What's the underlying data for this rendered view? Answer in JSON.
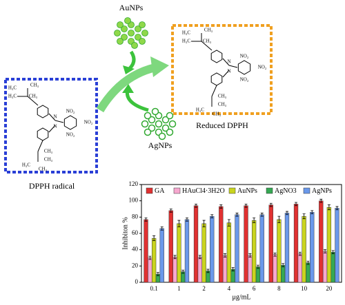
{
  "diagram": {
    "reagent_top": "AuNPs",
    "reagent_bottom": "AgNPs",
    "product": "Reduced DPPH",
    "reactant": "DPPH radical",
    "molecule_labels": [
      "H₃C",
      "CH₃",
      "H₃C",
      "CH₃",
      "N",
      "N",
      "NO₂",
      "NO₂",
      "NO₂",
      "CH₃",
      "CH₃",
      "H₃C",
      "CH₃"
    ]
  },
  "chart_data": {
    "type": "bar",
    "y_label": "Inhibiton %",
    "x_label": "μg/mL",
    "categories": [
      "0.1",
      "1",
      "2",
      "4",
      "6",
      "8",
      "10",
      "20"
    ],
    "series": [
      {
        "name": "GA",
        "color": "#e03131",
        "values": [
          77,
          88,
          94,
          93,
          94,
          95,
          96,
          100
        ],
        "errors": [
          2,
          2,
          2,
          2,
          2,
          2,
          2,
          2
        ]
      },
      {
        "name": "HAuCl4·3H2O",
        "color": "#f7a8cf",
        "values": [
          30,
          31,
          31,
          33,
          33,
          34,
          35,
          38
        ],
        "errors": [
          2,
          2,
          2,
          2,
          2,
          2,
          2,
          2
        ]
      },
      {
        "name": "AuNPs",
        "color": "#c9d41e",
        "values": [
          54,
          72,
          72,
          73,
          76,
          77,
          81,
          92
        ],
        "errors": [
          3,
          4,
          4,
          4,
          3,
          4,
          3,
          3
        ]
      },
      {
        "name": "AgNO3",
        "color": "#35a853",
        "values": [
          10,
          13,
          14,
          16,
          19,
          21,
          24,
          37
        ],
        "errors": [
          2,
          2,
          2,
          2,
          2,
          2,
          2,
          2
        ]
      },
      {
        "name": "AgNPs",
        "color": "#6a98ea",
        "values": [
          66,
          77,
          81,
          83,
          83,
          85,
          86,
          91
        ],
        "errors": [
          2,
          2,
          2,
          2,
          2,
          2,
          2,
          2
        ]
      }
    ],
    "ylim": [
      0,
      120
    ],
    "yticks": [
      0,
      20,
      40,
      60,
      80,
      100,
      120
    ],
    "legend": "top"
  }
}
